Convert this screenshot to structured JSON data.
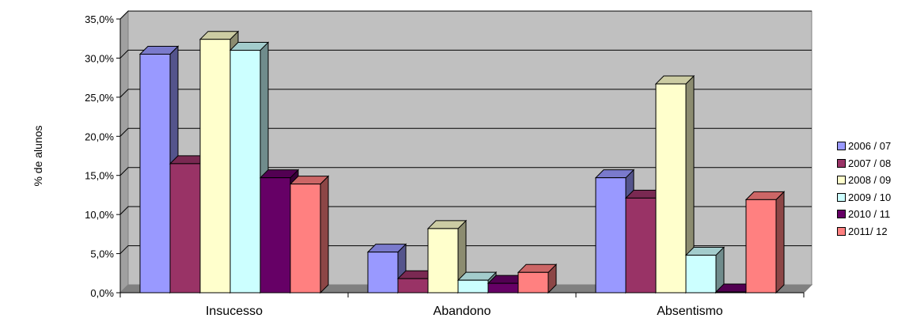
{
  "chart_data": {
    "type": "bar",
    "title": "",
    "xlabel": "",
    "ylabel": "% de alunos",
    "ylim": [
      0,
      35
    ],
    "yticks": [
      "0,0%",
      "5,0%",
      "10,0%",
      "15,0%",
      "20,0%",
      "25,0%",
      "30,0%",
      "35,0%"
    ],
    "grid": true,
    "legend_position": "right",
    "categories": [
      "Insucesso",
      "Abandono",
      "Absentismo"
    ],
    "series": [
      {
        "name": "2006 / 07",
        "color": "#9999ff",
        "values": [
          30.5,
          5.2,
          14.7
        ]
      },
      {
        "name": "2007 / 08",
        "color": "#993366",
        "values": [
          16.5,
          1.8,
          12.1
        ]
      },
      {
        "name": "2008 / 09",
        "color": "#ffffcc",
        "values": [
          32.4,
          8.2,
          26.7
        ]
      },
      {
        "name": "2009 / 10",
        "color": "#ccffff",
        "values": [
          31.0,
          1.6,
          4.8
        ]
      },
      {
        "name": "2010 / 11",
        "color": "#660066",
        "values": [
          14.7,
          1.2,
          0.1
        ]
      },
      {
        "name": "2011/ 12",
        "color": "#ff8080",
        "values": [
          13.9,
          2.6,
          11.9
        ]
      }
    ]
  }
}
